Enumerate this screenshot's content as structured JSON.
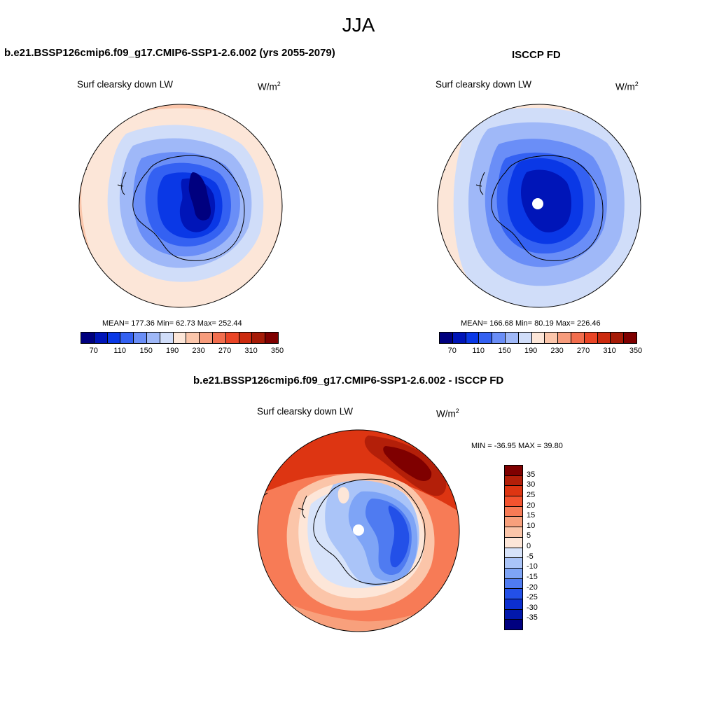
{
  "season": "JJA",
  "panel_model": {
    "title": "b.e21.BSSP126cmip6.f09_g17.CMIP6-SSP1-2.6.002 (yrs 2055-2079)",
    "variable": "Surf clearsky down LW",
    "units_base": "W/m",
    "units_exp": "2",
    "stats": "MEAN= 177.36  Min=  62.73  Max= 252.44"
  },
  "panel_obs": {
    "title": "ISCCP FD",
    "variable": "Surf clearsky down LW",
    "units_base": "W/m",
    "units_exp": "2",
    "stats": "MEAN= 166.68  Min=  80.19  Max= 226.46"
  },
  "panel_diff": {
    "title": "b.e21.BSSP126cmip6.f09_g17.CMIP6-SSP1-2.6.002 - ISCCP FD",
    "variable": "Surf clearsky down LW",
    "units_base": "W/m",
    "units_exp": "2",
    "stats": "MIN = -36.95 MAX =  39.80"
  },
  "colorbar_abs": {
    "tick_labels": [
      "70",
      "110",
      "150",
      "190",
      "230",
      "270",
      "310",
      "350"
    ],
    "colors": [
      "#00007f",
      "#0015b8",
      "#0a38e6",
      "#3461f2",
      "#6a8ef7",
      "#9fb8f8",
      "#d0ddf9",
      "#fce6d8",
      "#fbc6ab",
      "#f79c7c",
      "#f26e4e",
      "#ea4526",
      "#cc2a0e",
      "#a61b07",
      "#7f0000"
    ]
  },
  "colorbar_diff": {
    "tick_labels": [
      "35",
      "30",
      "25",
      "20",
      "15",
      "10",
      "5",
      "0",
      "-5",
      "-10",
      "-15",
      "-20",
      "-25",
      "-30",
      "-35"
    ],
    "colors": [
      "#7f0000",
      "#b31f09",
      "#dd3512",
      "#f3532f",
      "#f77b56",
      "#f8a07c",
      "#fbc5a9",
      "#fde6d8",
      "#d7e3fa",
      "#aac4f8",
      "#7ea4f6",
      "#4f7bf1",
      "#2350e8",
      "#0c2fcf",
      "#0218ab",
      "#000080"
    ]
  },
  "chart_data": {
    "type": "map",
    "projection": "south polar stereographic",
    "region": "Antarctica",
    "panels": [
      {
        "title": "b.e21.BSSP126cmip6.f09_g17.CMIP6-SSP1-2.6.002 (yrs 2055-2079)",
        "variable": "Surf clearsky down LW",
        "units": "W/m2",
        "mean": 177.36,
        "min": 62.73,
        "max": 252.44,
        "contour_levels": [
          70,
          90,
          110,
          130,
          150,
          170,
          190,
          210,
          230,
          250,
          270,
          290,
          310,
          330,
          350
        ]
      },
      {
        "title": "ISCCP FD",
        "variable": "Surf clearsky down LW",
        "units": "W/m2",
        "mean": 166.68,
        "min": 80.19,
        "max": 226.46,
        "contour_levels": [
          70,
          90,
          110,
          130,
          150,
          170,
          190,
          210,
          230,
          250,
          270,
          290,
          310,
          330,
          350
        ]
      },
      {
        "title": "b.e21.BSSP126cmip6.f09_g17.CMIP6-SSP1-2.6.002 - ISCCP FD",
        "variable": "Surf clearsky down LW",
        "units": "W/m2",
        "min": -36.95,
        "max": 39.8,
        "contour_levels": [
          -35,
          -30,
          -25,
          -20,
          -15,
          -10,
          -5,
          0,
          5,
          10,
          15,
          20,
          25,
          30,
          35
        ]
      }
    ]
  }
}
